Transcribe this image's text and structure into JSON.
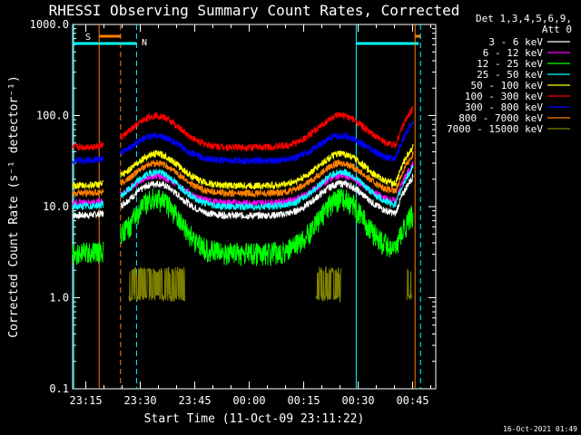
{
  "chart_data": {
    "type": "line",
    "title": "RHESSI Observing Summary Count Rates, Corrected",
    "xlabel": "Start Time (11-Oct-09 23:11:22)",
    "ylabel": "Corrected Count Rate (s⁻¹ detector⁻¹)",
    "y_scale": "log",
    "ylim": [
      0.1,
      1000
    ],
    "y_ticks": [
      "0.1",
      "1.0",
      "10.0",
      "100.0",
      "1000.0"
    ],
    "x_ticks": [
      "23:15",
      "23:30",
      "23:45",
      "00:00",
      "00:15",
      "00:30",
      "00:45"
    ],
    "legend_header": [
      "Det 1,3,4,5,6,9,",
      "Att 0"
    ],
    "legend_placement": "top-right, outside plot",
    "series": [
      {
        "name": "3 - 6 keV",
        "color": "#ffffff",
        "trough": 8,
        "peak": 18
      },
      {
        "name": "6 - 12 keV",
        "color": "#ff00ff",
        "trough": 11,
        "peak": 22
      },
      {
        "name": "12 - 25 keV",
        "color": "#00ff00",
        "trough": 4,
        "peak": 16
      },
      {
        "name": "25 - 50 keV",
        "color": "#00ffff",
        "trough": 10,
        "peak": 24
      },
      {
        "name": "50 - 100 keV",
        "color": "#ffff00",
        "trough": 17,
        "peak": 38
      },
      {
        "name": "100 - 300 keV",
        "color": "#ff0000",
        "trough": 45,
        "peak": 100
      },
      {
        "name": "300 - 800 keV",
        "color": "#0000ff",
        "trough": 32,
        "peak": 60
      },
      {
        "name": "800 - 7000 keV",
        "color": "#ff8000",
        "trough": 14,
        "peak": 30
      },
      {
        "name": "7000 - 15000 keV",
        "color": "#808000",
        "trough": 1.0,
        "peak": 2.0
      }
    ],
    "annotations": [
      {
        "label": "S",
        "color": "#ff8000"
      },
      {
        "label": "N",
        "color": "#00ffff"
      }
    ],
    "grid": false
  },
  "footer": {
    "timestamp": "16-Oct-2021 01:49"
  }
}
